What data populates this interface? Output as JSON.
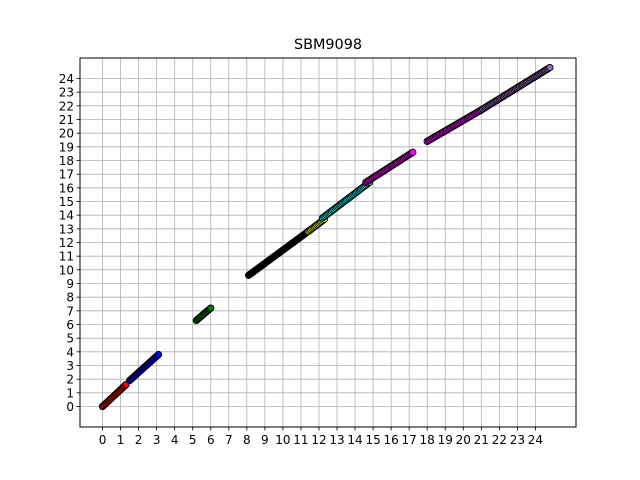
{
  "chart_data": {
    "type": "scatter",
    "title": "SBM9098",
    "xlabel": "",
    "ylabel": "",
    "xlim": [
      -1.25,
      26.25
    ],
    "ylim": [
      -1.5,
      25.5
    ],
    "xticks": [
      0,
      1,
      2,
      3,
      4,
      5,
      6,
      7,
      8,
      9,
      10,
      11,
      12,
      13,
      14,
      15,
      16,
      17,
      18,
      19,
      20,
      21,
      22,
      23,
      24
    ],
    "yticks": [
      0,
      1,
      2,
      3,
      4,
      5,
      6,
      7,
      8,
      9,
      10,
      11,
      12,
      13,
      14,
      15,
      16,
      17,
      18,
      19,
      20,
      21,
      22,
      23,
      24
    ],
    "grid": true,
    "series": [
      {
        "color": "#ff0000",
        "x": [
          0.0,
          1.3
        ],
        "y": [
          0.0,
          1.6
        ]
      },
      {
        "color": "#0000ff",
        "x": [
          1.5,
          3.1
        ],
        "y": [
          1.9,
          3.8
        ]
      },
      {
        "color": "#008000",
        "x": [
          5.2,
          6.0
        ],
        "y": [
          6.3,
          7.2
        ]
      },
      {
        "color": "#000000",
        "x": [
          8.1,
          11.6
        ],
        "y": [
          9.6,
          13.0
        ]
      },
      {
        "color": "#ffff00",
        "x": [
          11.4,
          12.3
        ],
        "y": [
          12.8,
          13.7
        ]
      },
      {
        "color": "#00ffff",
        "x": [
          12.2,
          14.8
        ],
        "y": [
          13.8,
          16.4
        ]
      },
      {
        "color": "#ff00ff",
        "x": [
          14.6,
          17.2
        ],
        "y": [
          16.4,
          18.6
        ]
      },
      {
        "color": "#ff00ff",
        "x": [
          18.0,
          21.0
        ],
        "y": [
          19.4,
          21.7
        ]
      },
      {
        "color": "#9467bd",
        "x": [
          21.0,
          24.8
        ],
        "y": [
          21.7,
          24.8
        ]
      }
    ]
  }
}
